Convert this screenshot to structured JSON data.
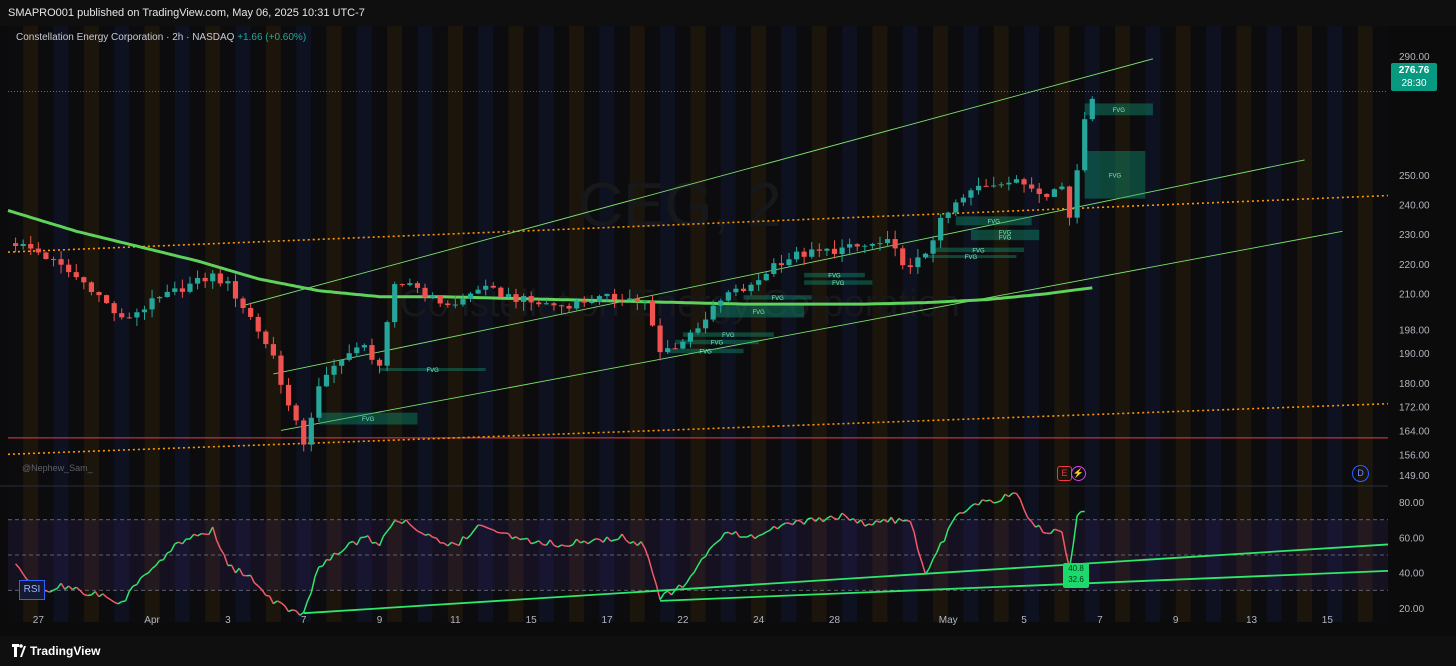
{
  "header": {
    "publisher": "SMAPRO001 published on TradingView.com, May 06, 2025 10:31 UTC-7"
  },
  "legend": {
    "symbol": "Constellation Energy Corporation · 2h · NASDAQ",
    "change": "+1.66 (+0.60%)"
  },
  "watermark_text": "@Nephew_Sam_",
  "last_price": {
    "price": "276.76",
    "countdown": "28:30"
  },
  "rsi": {
    "label": "RSI",
    "badge_top": "40.8",
    "badge_bottom": "32.6"
  },
  "events": {
    "earnings": "E",
    "split": "⚡",
    "dividend": "D"
  },
  "footer": {
    "brand": "TradingView"
  },
  "chart_data": {
    "type": "candlestick",
    "title": "Constellation Energy Corporation · 2h · NASDAQ",
    "price_axis": {
      "ticks": [
        290,
        250,
        240,
        230,
        220,
        210,
        198,
        190,
        180,
        172,
        164,
        156,
        149
      ],
      "range": [
        146,
        296
      ]
    },
    "rsi_axis": {
      "ticks": [
        80,
        60,
        40,
        20
      ],
      "range": [
        12,
        88
      ],
      "bands": [
        30,
        50,
        70
      ]
    },
    "x_ticks": [
      {
        "label": "27",
        "t": 3
      },
      {
        "label": "Apr",
        "t": 18
      },
      {
        "label": "3",
        "t": 28
      },
      {
        "label": "7",
        "t": 38
      },
      {
        "label": "9",
        "t": 48
      },
      {
        "label": "11",
        "t": 58
      },
      {
        "label": "15",
        "t": 68
      },
      {
        "label": "17",
        "t": 78
      },
      {
        "label": "22",
        "t": 88
      },
      {
        "label": "24",
        "t": 98
      },
      {
        "label": "28",
        "t": 108
      },
      {
        "label": "May",
        "t": 123
      },
      {
        "label": "5",
        "t": 133
      },
      {
        "label": "7",
        "t": 143
      },
      {
        "label": "9",
        "t": 153
      },
      {
        "label": "13",
        "t": 163
      },
      {
        "label": "15",
        "t": 173
      }
    ],
    "t_range": [
      -1,
      181
    ],
    "closes_anchors": [
      [
        0,
        227
      ],
      [
        3,
        224
      ],
      [
        6,
        219
      ],
      [
        10,
        212
      ],
      [
        14,
        201
      ],
      [
        18,
        207
      ],
      [
        22,
        212
      ],
      [
        26,
        216
      ],
      [
        28,
        213
      ],
      [
        31,
        202
      ],
      [
        34,
        189
      ],
      [
        36,
        172
      ],
      [
        38,
        160
      ],
      [
        40,
        178
      ],
      [
        43,
        189
      ],
      [
        46,
        192
      ],
      [
        48,
        186
      ],
      [
        50,
        212
      ],
      [
        52,
        214
      ],
      [
        55,
        208
      ],
      [
        58,
        206
      ],
      [
        61,
        212
      ],
      [
        64,
        210
      ],
      [
        68,
        207
      ],
      [
        72,
        206
      ],
      [
        76,
        208
      ],
      [
        80,
        209
      ],
      [
        83,
        207
      ],
      [
        85,
        190
      ],
      [
        88,
        194
      ],
      [
        91,
        202
      ],
      [
        94,
        210
      ],
      [
        97,
        212
      ],
      [
        100,
        220
      ],
      [
        103,
        223
      ],
      [
        106,
        224
      ],
      [
        109,
        225
      ],
      [
        112,
        226
      ],
      [
        115,
        227
      ],
      [
        118,
        218
      ],
      [
        120,
        224
      ],
      [
        122,
        234
      ],
      [
        124,
        240
      ],
      [
        127,
        246
      ],
      [
        130,
        248
      ],
      [
        133,
        247
      ],
      [
        136,
        244
      ],
      [
        138,
        246
      ],
      [
        139,
        236
      ],
      [
        140,
        252
      ],
      [
        141,
        270
      ],
      [
        142,
        276.76
      ]
    ],
    "rsi_anchors": [
      [
        0,
        45
      ],
      [
        3,
        28
      ],
      [
        6,
        32
      ],
      [
        10,
        28
      ],
      [
        14,
        23
      ],
      [
        18,
        44
      ],
      [
        22,
        58
      ],
      [
        26,
        64
      ],
      [
        28,
        43
      ],
      [
        31,
        38
      ],
      [
        34,
        23
      ],
      [
        37,
        18
      ],
      [
        38,
        17
      ],
      [
        40,
        44
      ],
      [
        43,
        53
      ],
      [
        46,
        60
      ],
      [
        48,
        57
      ],
      [
        50,
        70
      ],
      [
        52,
        68
      ],
      [
        55,
        60
      ],
      [
        58,
        55
      ],
      [
        61,
        66
      ],
      [
        64,
        62
      ],
      [
        68,
        58
      ],
      [
        72,
        56
      ],
      [
        76,
        58
      ],
      [
        80,
        60
      ],
      [
        83,
        55
      ],
      [
        85,
        25
      ],
      [
        88,
        33
      ],
      [
        91,
        50
      ],
      [
        94,
        63
      ],
      [
        97,
        60
      ],
      [
        100,
        66
      ],
      [
        103,
        68
      ],
      [
        106,
        70
      ],
      [
        109,
        72
      ],
      [
        112,
        68
      ],
      [
        115,
        70
      ],
      [
        118,
        68
      ],
      [
        120,
        40
      ],
      [
        122,
        55
      ],
      [
        124,
        72
      ],
      [
        127,
        79
      ],
      [
        130,
        82
      ],
      [
        132,
        84
      ],
      [
        134,
        68
      ],
      [
        136,
        63
      ],
      [
        138,
        64
      ],
      [
        139,
        41
      ],
      [
        140,
        74
      ],
      [
        141,
        76
      ]
    ],
    "ma_anchors": [
      [
        -1,
        238
      ],
      [
        8,
        231
      ],
      [
        16,
        226
      ],
      [
        24,
        221
      ],
      [
        32,
        215
      ],
      [
        40,
        211
      ],
      [
        48,
        209
      ],
      [
        56,
        209
      ],
      [
        64,
        208.5
      ],
      [
        72,
        208
      ],
      [
        80,
        207.5
      ],
      [
        88,
        207
      ],
      [
        96,
        206.5
      ],
      [
        104,
        206.5
      ],
      [
        112,
        206.5
      ],
      [
        120,
        207
      ],
      [
        128,
        208
      ],
      [
        136,
        210
      ],
      [
        142,
        212
      ]
    ],
    "channel_lines": [
      {
        "from": [
          30,
          206
        ],
        "to": [
          150,
          289
        ],
        "color": "#7ee06f"
      },
      {
        "from": [
          34,
          183
        ],
        "to": [
          170,
          255
        ],
        "color": "#7ee06f"
      },
      {
        "from": [
          35,
          164
        ],
        "to": [
          175,
          231
        ],
        "color": "#7ee06f"
      }
    ],
    "dotted_lines": [
      {
        "from": [
          -1,
          224
        ],
        "to": [
          181,
          243
        ],
        "color": "#ff9800"
      },
      {
        "from": [
          -1,
          156
        ],
        "to": [
          181,
          173
        ],
        "color": "#ff9800"
      }
    ],
    "horizontal_lines": [
      {
        "price": 161.5,
        "color": "#f23645"
      },
      {
        "price": 278,
        "color": "#6a6d78"
      }
    ],
    "rsi_trendlines": [
      {
        "from": [
          38,
          17
        ],
        "to": [
          181,
          56
        ]
      },
      {
        "from": [
          85,
          24
        ],
        "to": [
          181,
          41
        ]
      }
    ],
    "fvg_zones": [
      {
        "label": "FVG",
        "t0": 40,
        "t1": 53,
        "p0": 166,
        "p1": 170
      },
      {
        "label": "FVG",
        "t0": 48,
        "t1": 62,
        "p0": 184,
        "p1": 185
      },
      {
        "label": "FVG",
        "t0": 86,
        "t1": 96,
        "p0": 190,
        "p1": 191.5
      },
      {
        "label": "FVG",
        "t0": 87,
        "t1": 98,
        "p0": 193,
        "p1": 194.5
      },
      {
        "label": "FVG",
        "t0": 88,
        "t1": 100,
        "p0": 195.5,
        "p1": 197
      },
      {
        "label": "FVG",
        "t0": 92,
        "t1": 104,
        "p0": 202,
        "p1": 206
      },
      {
        "label": "FVG",
        "t0": 96,
        "t1": 105,
        "p0": 208,
        "p1": 209.5
      },
      {
        "label": "FVG",
        "t0": 104,
        "t1": 113,
        "p0": 213,
        "p1": 214.5
      },
      {
        "label": "FVG",
        "t0": 104,
        "t1": 112,
        "p0": 215.5,
        "p1": 217
      },
      {
        "label": "FVG",
        "t0": 120,
        "t1": 132,
        "p0": 222,
        "p1": 223
      },
      {
        "label": "FVG",
        "t0": 121,
        "t1": 133,
        "p0": 224,
        "p1": 225.5
      },
      {
        "label": "FVG",
        "t0": 126,
        "t1": 135,
        "p0": 228,
        "p1": 230
      },
      {
        "label": "FVG",
        "t0": 126,
        "t1": 135,
        "p0": 230,
        "p1": 231.5
      },
      {
        "label": "FVG",
        "t0": 124,
        "t1": 134,
        "p0": 233,
        "p1": 236
      },
      {
        "label": "FVG",
        "t0": 141,
        "t1": 149,
        "p0": 242,
        "p1": 258
      },
      {
        "label": "FVG",
        "t0": 141,
        "t1": 150,
        "p0": 270,
        "p1": 274
      }
    ],
    "watermark": {
      "ticker": "CEG, 2",
      "name": "Constellation Energy Corporation"
    }
  }
}
